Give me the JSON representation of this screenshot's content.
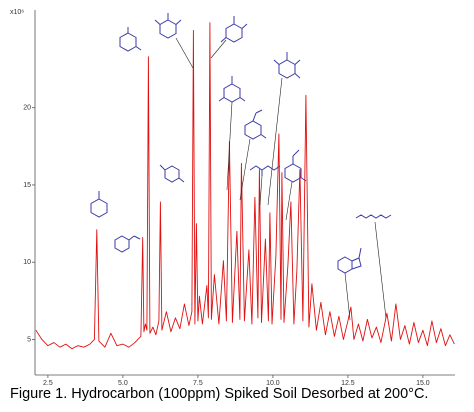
{
  "chart_data": {
    "type": "line",
    "y_multiplier": "x10⁶",
    "caption": "Figure 1. Hydrocarbon (100ppm) Spiked Soil Desorbed at 200°C.",
    "x": [
      2.1,
      2.3,
      2.5,
      2.7,
      2.9,
      3.1,
      3.3,
      3.5,
      3.7,
      3.9,
      4.05,
      4.13,
      4.2,
      4.4,
      4.6,
      4.8,
      5.0,
      5.2,
      5.4,
      5.6,
      5.66,
      5.7,
      5.75,
      5.8,
      5.85,
      5.9,
      6.0,
      6.1,
      6.2,
      6.25,
      6.3,
      6.45,
      6.6,
      6.75,
      6.9,
      7.05,
      7.2,
      7.3,
      7.35,
      7.4,
      7.45,
      7.5,
      7.55,
      7.65,
      7.8,
      7.85,
      7.9,
      7.95,
      8.05,
      8.2,
      8.35,
      8.45,
      8.55,
      8.65,
      8.8,
      8.9,
      8.95,
      9.05,
      9.2,
      9.3,
      9.4,
      9.5,
      9.55,
      9.62,
      9.75,
      9.85,
      9.9,
      9.97,
      10.1,
      10.2,
      10.27,
      10.3,
      10.37,
      10.5,
      10.6,
      10.7,
      10.8,
      10.9,
      11.0,
      11.1,
      11.2,
      11.3,
      11.45,
      11.6,
      11.75,
      11.9,
      12.05,
      12.2,
      12.35,
      12.5,
      12.6,
      12.7,
      12.85,
      13.0,
      13.15,
      13.3,
      13.45,
      13.6,
      13.8,
      13.95,
      14.1,
      14.25,
      14.4,
      14.55,
      14.7,
      14.85,
      15.0,
      15.15,
      15.3,
      15.45,
      15.6,
      15.75,
      15.9,
      16.05
    ],
    "series": [
      {
        "color": "#e01010",
        "values": [
          5.6,
          5.0,
          4.6,
          4.8,
          4.5,
          4.7,
          4.4,
          4.6,
          4.5,
          4.7,
          5.0,
          12.1,
          4.9,
          4.5,
          5.4,
          4.6,
          4.7,
          4.5,
          4.8,
          5.2,
          11.6,
          5.5,
          6.0,
          5.6,
          23.3,
          5.4,
          5.8,
          5.3,
          6.2,
          13.9,
          5.6,
          6.8,
          5.5,
          6.4,
          5.7,
          7.3,
          5.9,
          6.8,
          25.0,
          6.0,
          12.5,
          6.2,
          7.8,
          6.0,
          8.5,
          6.4,
          25.5,
          6.3,
          9.2,
          6.0,
          10.1,
          6.2,
          17.8,
          6.1,
          12.0,
          6.3,
          16.4,
          6.2,
          10.8,
          6.0,
          14.2,
          6.4,
          16.0,
          6.1,
          11.5,
          6.2,
          13.2,
          6.0,
          10.4,
          18.3,
          6.3,
          15.8,
          6.1,
          9.8,
          13.9,
          6.0,
          9.5,
          16.0,
          6.2,
          20.8,
          5.8,
          8.6,
          5.6,
          7.4,
          5.3,
          6.8,
          5.2,
          6.5,
          5.0,
          6.2,
          7.1,
          5.0,
          6.0,
          4.9,
          6.3,
          5.1,
          5.8,
          4.8,
          6.7,
          4.9,
          7.3,
          5.0,
          5.9,
          4.7,
          6.1,
          4.8,
          5.6,
          4.6,
          6.2,
          4.8,
          5.7,
          4.6,
          5.3,
          4.7
        ]
      }
    ],
    "xlim": [
      2.07,
      16.07
    ],
    "ylim": [
      2.7,
      26
    ],
    "xticks": [
      2.5,
      {
        "value": 5,
        "label": "5.0"
      },
      {
        "value": 7.5,
        "label": "7.5"
      },
      {
        "value": 10,
        "label": "10.0"
      },
      {
        "value": 12.5,
        "label": "12.5"
      },
      {
        "value": 15,
        "label": "15.0"
      }
    ],
    "yticks": [
      5,
      10,
      15,
      20
    ]
  }
}
